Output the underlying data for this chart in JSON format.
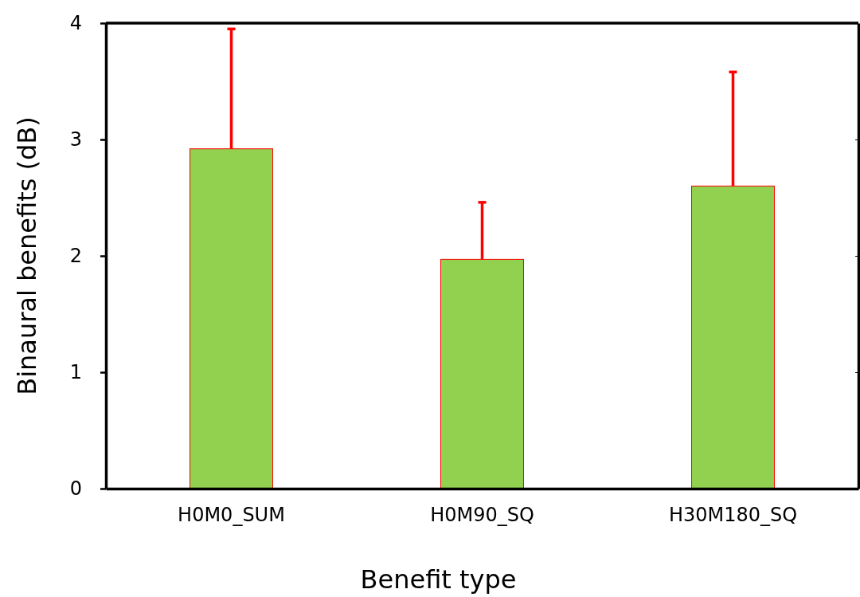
{
  "chart_data": {
    "type": "bar",
    "xlabel": "Benefit type",
    "ylabel": "Binaural benefits (dB)",
    "categories": [
      "H0M0_SUM",
      "H0M90_SQ",
      "H30M180_SQ"
    ],
    "values": [
      2.92,
      1.97,
      2.6
    ],
    "errors": [
      [
        2.92,
        3.95
      ],
      [
        1.97,
        2.46
      ],
      [
        2.6,
        3.58
      ]
    ],
    "color": "#92d050",
    "ylim": [
      0,
      4
    ],
    "yticks": [
      0,
      1,
      2,
      3,
      4
    ],
    "grid": false
  }
}
